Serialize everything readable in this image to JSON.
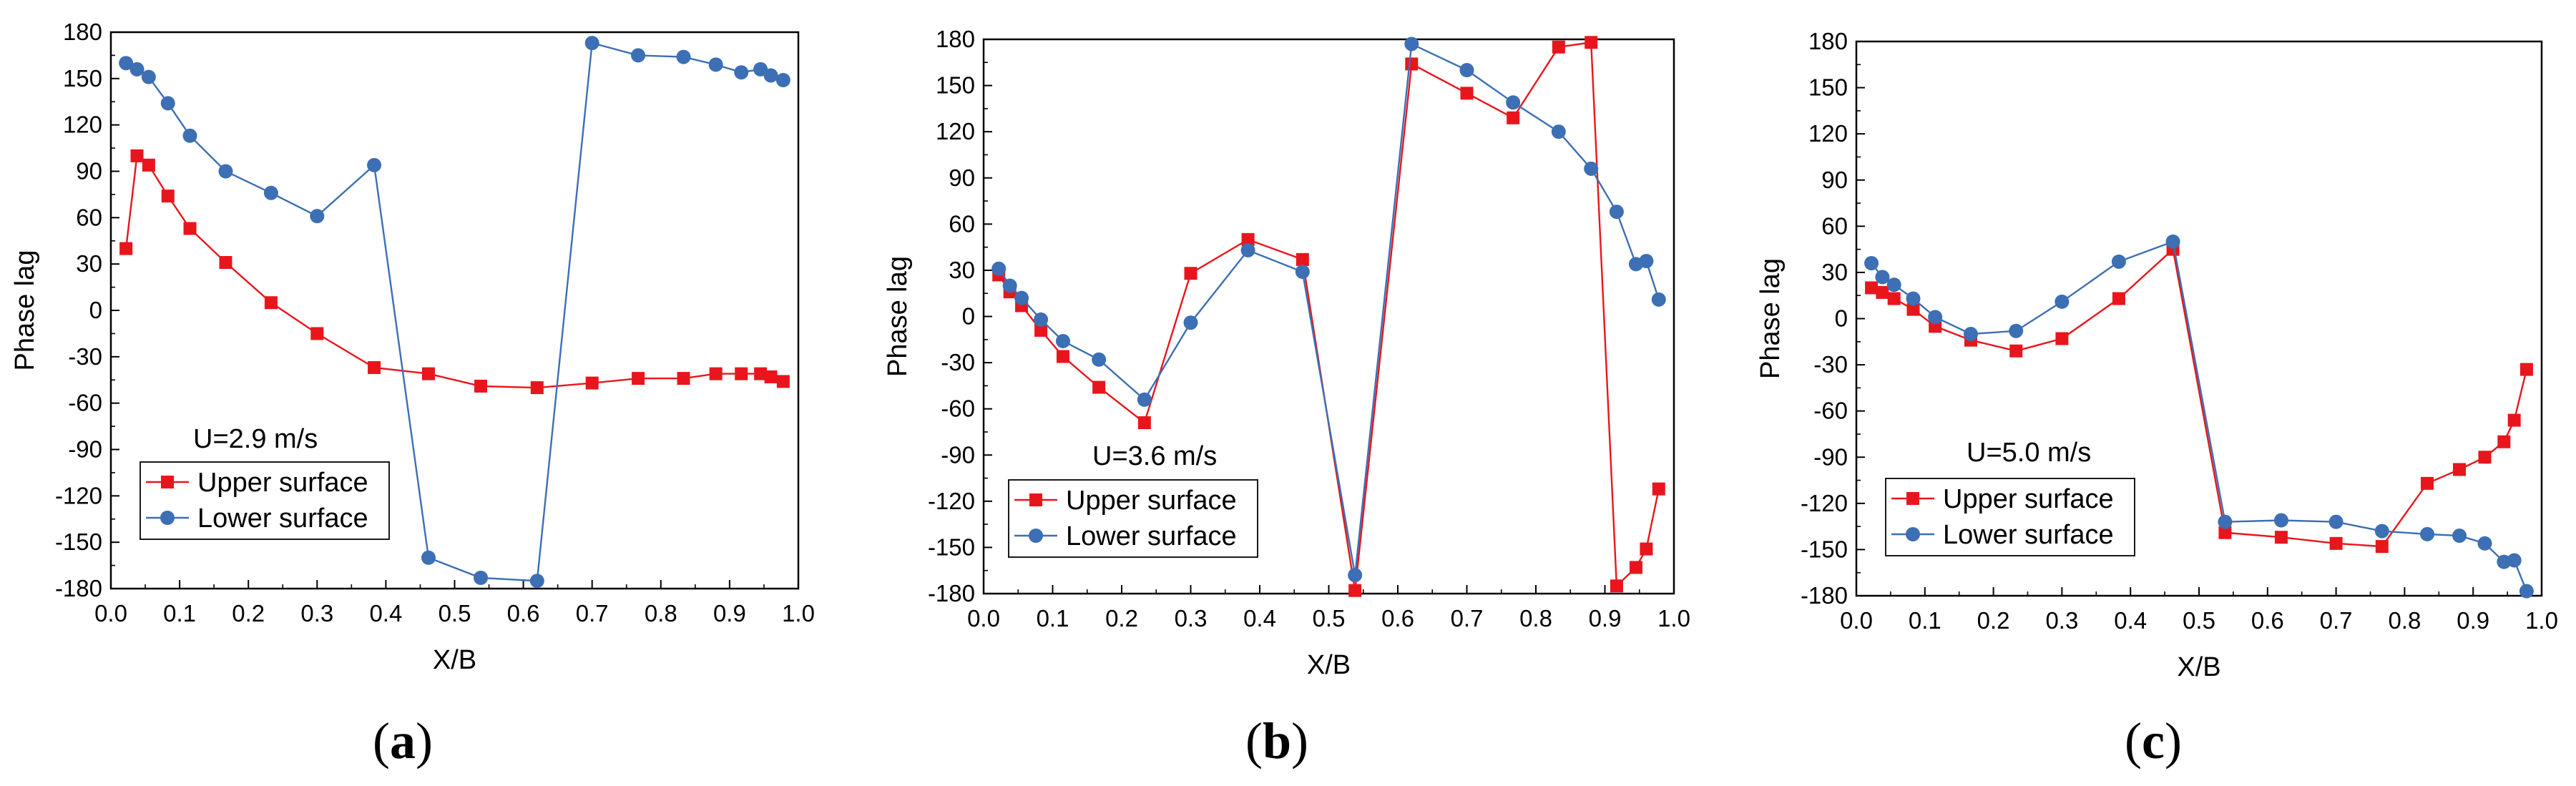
{
  "chart_data": [
    {
      "type": "line",
      "caption": "a",
      "annotation": "U=2.9 m/s",
      "xlabel": "X/B",
      "ylabel": "Phase lag",
      "xlim": [
        0.0,
        1.0
      ],
      "ylim": [
        -180,
        180
      ],
      "xticks": [
        "0.0",
        "0.1",
        "0.2",
        "0.3",
        "0.4",
        "0.5",
        "0.6",
        "0.7",
        "0.8",
        "0.9",
        "1.0"
      ],
      "yticks": [
        "-180",
        "-150",
        "-120",
        "-90",
        "-60",
        "-30",
        "0",
        "30",
        "60",
        "90",
        "120",
        "150",
        "180"
      ],
      "series": [
        {
          "name": "Upper surface",
          "color": "#e8161c",
          "marker": "square",
          "x": [
            0.022,
            0.038,
            0.055,
            0.083,
            0.115,
            0.167,
            0.233,
            0.3,
            0.383,
            0.462,
            0.538,
            0.62,
            0.7,
            0.767,
            0.833,
            0.88,
            0.917,
            0.945,
            0.96,
            0.978
          ],
          "y": [
            40,
            100,
            94,
            74,
            53,
            31,
            5,
            -15,
            -37,
            -41,
            -49,
            -50,
            -47,
            -44,
            -44,
            -41,
            -41,
            -41,
            -43,
            -46
          ]
        },
        {
          "name": "Lower surface",
          "color": "#3c6fb4",
          "marker": "circle",
          "x": [
            0.022,
            0.038,
            0.055,
            0.083,
            0.115,
            0.167,
            0.233,
            0.3,
            0.383,
            0.462,
            0.538,
            0.62,
            0.7,
            0.767,
            0.833,
            0.88,
            0.917,
            0.945,
            0.96,
            0.978
          ],
          "y": [
            160,
            156,
            151,
            134,
            113,
            90,
            76,
            61,
            94,
            -160,
            -173,
            -175,
            173,
            165,
            164,
            159,
            154,
            156,
            152,
            149
          ]
        }
      ]
    },
    {
      "type": "line",
      "caption": "b",
      "annotation": "U=3.6 m/s",
      "xlabel": "X/B",
      "ylabel": "Phase lag",
      "xlim": [
        0.0,
        1.0
      ],
      "ylim": [
        -180,
        180
      ],
      "xticks": [
        "0.0",
        "0.1",
        "0.2",
        "0.3",
        "0.4",
        "0.5",
        "0.6",
        "0.7",
        "0.8",
        "0.9",
        "1.0"
      ],
      "yticks": [
        "-180",
        "-150",
        "-120",
        "-90",
        "-60",
        "-30",
        "0",
        "30",
        "60",
        "90",
        "120",
        "150",
        "180"
      ],
      "series": [
        {
          "name": "Upper surface",
          "color": "#e8161c",
          "marker": "square",
          "x": [
            0.022,
            0.038,
            0.055,
            0.083,
            0.115,
            0.167,
            0.233,
            0.3,
            0.383,
            0.462,
            0.538,
            0.62,
            0.7,
            0.767,
            0.833,
            0.88,
            0.917,
            0.945,
            0.96,
            0.978
          ],
          "y": [
            27,
            16,
            7,
            -9,
            -26,
            -46,
            -69,
            28,
            50,
            37,
            -178,
            164,
            145,
            129,
            175,
            178,
            -175,
            -163,
            -151,
            -112
          ]
        },
        {
          "name": "Lower surface",
          "color": "#3c6fb4",
          "marker": "circle",
          "x": [
            0.022,
            0.038,
            0.055,
            0.083,
            0.115,
            0.167,
            0.233,
            0.3,
            0.383,
            0.462,
            0.538,
            0.62,
            0.7,
            0.767,
            0.833,
            0.88,
            0.917,
            0.945,
            0.96,
            0.978
          ],
          "y": [
            31,
            20,
            12,
            -2,
            -16,
            -28,
            -54,
            -4,
            43,
            29,
            -168,
            177,
            160,
            139,
            120,
            96,
            68,
            34,
            36,
            11
          ]
        }
      ]
    },
    {
      "type": "line",
      "caption": "c",
      "annotation": "U=5.0 m/s",
      "xlabel": "X/B",
      "ylabel": "Phase lag",
      "xlim": [
        0.0,
        1.0
      ],
      "ylim": [
        -180,
        180
      ],
      "xticks": [
        "0.0",
        "0.1",
        "0.2",
        "0.3",
        "0.4",
        "0.5",
        "0.6",
        "0.7",
        "0.8",
        "0.9",
        "1.0"
      ],
      "yticks": [
        "-180",
        "-150",
        "-120",
        "-90",
        "-60",
        "-30",
        "0",
        "30",
        "60",
        "90",
        "120",
        "150",
        "180"
      ],
      "series": [
        {
          "name": "Upper surface",
          "color": "#e8161c",
          "marker": "square",
          "x": [
            0.022,
            0.038,
            0.055,
            0.083,
            0.115,
            0.167,
            0.233,
            0.3,
            0.383,
            0.462,
            0.538,
            0.62,
            0.7,
            0.767,
            0.833,
            0.88,
            0.917,
            0.945,
            0.96,
            0.978
          ],
          "y": [
            20,
            17,
            13,
            6,
            -5,
            -14,
            -21,
            -13,
            13,
            45,
            -139,
            -142,
            -146,
            -148,
            -107,
            -98,
            -90,
            -80,
            -66,
            -33
          ]
        },
        {
          "name": "Lower surface",
          "color": "#3c6fb4",
          "marker": "circle",
          "x": [
            0.022,
            0.038,
            0.055,
            0.083,
            0.115,
            0.167,
            0.233,
            0.3,
            0.383,
            0.462,
            0.538,
            0.62,
            0.7,
            0.767,
            0.833,
            0.88,
            0.917,
            0.945,
            0.96,
            0.978
          ],
          "y": [
            36,
            27,
            22,
            13,
            1,
            -10,
            -8,
            11,
            37,
            50,
            -132,
            -131,
            -132,
            -138,
            -140,
            -141,
            -146,
            -158,
            -157,
            -177
          ]
        }
      ]
    }
  ]
}
